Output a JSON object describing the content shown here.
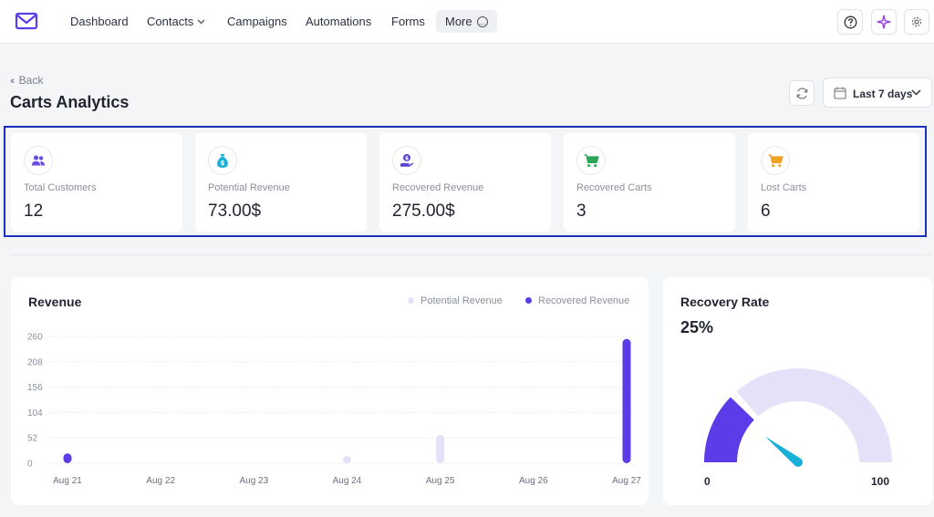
{
  "nav": {
    "items": [
      "Dashboard",
      "Contacts",
      "Campaigns",
      "Automations",
      "Forms"
    ],
    "more_label": "More"
  },
  "header": {
    "back_label": "Back",
    "title": "Carts Analytics",
    "date_range": "Last 7 days"
  },
  "stats": [
    {
      "label": "Total Customers",
      "value": "12",
      "icon": "users-icon",
      "color": "#6e4ce6"
    },
    {
      "label": "Potential Revenue",
      "value": "73.00$",
      "icon": "money-bag-icon",
      "color": "#1ab0d8"
    },
    {
      "label": "Recovered Revenue",
      "value": "275.00$",
      "icon": "hand-coin-icon",
      "color": "#5a3fd6"
    },
    {
      "label": "Recovered Carts",
      "value": "3",
      "icon": "cart-icon",
      "color": "#2aa55a"
    },
    {
      "label": "Lost Carts",
      "value": "6",
      "icon": "cart-icon",
      "color": "#f0a020"
    }
  ],
  "revenue": {
    "title": "Revenue",
    "chart_data": {
      "type": "bar",
      "categories": [
        "Aug 21",
        "Aug 22",
        "Aug 23",
        "Aug 24",
        "Aug 25",
        "Aug 26",
        "Aug 27"
      ],
      "series": [
        {
          "name": "Potential Revenue",
          "color": "#e4e1f8",
          "values": [
            0,
            0,
            0,
            15,
            58,
            0,
            0
          ]
        },
        {
          "name": "Recovered Revenue",
          "color": "#5b3ce8",
          "values": [
            20,
            0,
            0,
            0,
            0,
            0,
            255
          ]
        }
      ],
      "yticks": [
        "260",
        "208",
        "156",
        "104",
        "52",
        "0"
      ],
      "ylim": [
        0,
        260
      ],
      "grid": true,
      "legend": "top-right"
    }
  },
  "recovery": {
    "title": "Recovery Rate",
    "value": "25%",
    "min_label": "0",
    "max_label": "100",
    "level": 25,
    "fill_color": "#5b3ce8",
    "track_color": "#e4e1f8",
    "needle_color": "#1ab0d8"
  }
}
